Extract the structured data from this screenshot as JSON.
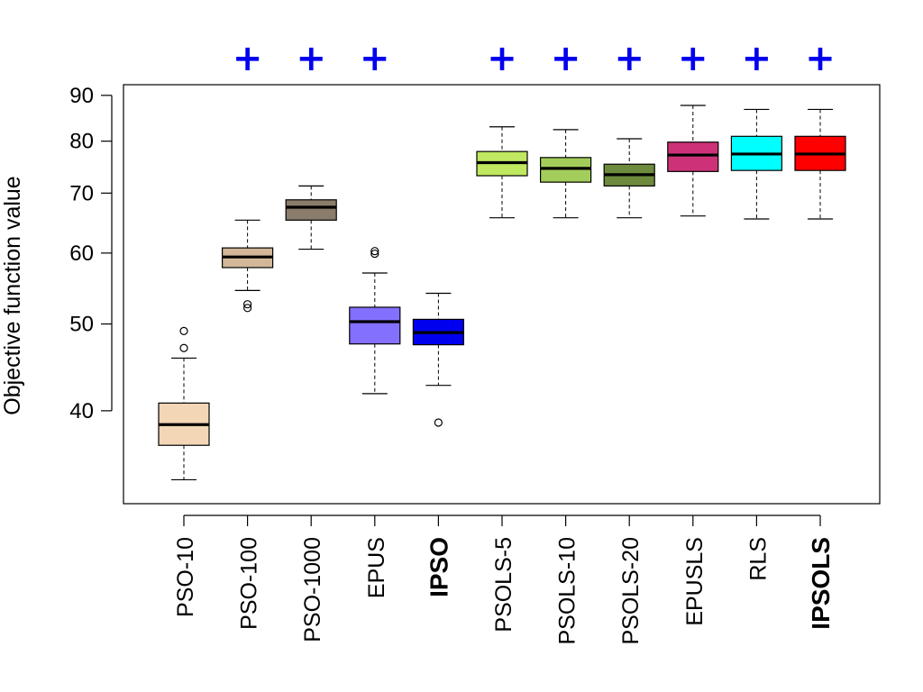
{
  "chart_data": {
    "type": "box",
    "title": "",
    "xlabel": "",
    "ylabel": "Objective function value",
    "y_scale": "log",
    "ylim": [
      31.5,
      92.5
    ],
    "yticks": [
      40,
      50,
      60,
      70,
      80,
      90
    ],
    "ytick_labels": [
      "40",
      "50",
      "60",
      "70",
      "80",
      "90"
    ],
    "significance_marker": "+",
    "significance_color": "#0000ee",
    "categories": [
      {
        "label": "PSO-10",
        "bold": false,
        "color": "#f2d6b6",
        "lower_whisker": 33.5,
        "q1": 36.6,
        "median": 38.6,
        "q3": 40.8,
        "upper_whisker": 45.8,
        "outliers": [
          47.0,
          49.1
        ],
        "significant": false
      },
      {
        "label": "PSO-100",
        "bold": false,
        "color": "#d2b898",
        "lower_whisker": 54.5,
        "q1": 57.8,
        "median": 59.4,
        "q3": 60.8,
        "upper_whisker": 65.3,
        "outliers": [
          52.1,
          52.6
        ],
        "significant": true
      },
      {
        "label": "PSO-1000",
        "bold": false,
        "color": "#8b7d6b",
        "lower_whisker": 60.6,
        "q1": 65.3,
        "median": 67.5,
        "q3": 68.8,
        "upper_whisker": 71.3,
        "outliers": [],
        "significant": true
      },
      {
        "label": "EPUS",
        "bold": false,
        "color": "#8470ff",
        "lower_whisker": 41.8,
        "q1": 47.5,
        "median": 50.3,
        "q3": 52.2,
        "upper_whisker": 57.0,
        "outliers": [
          59.9,
          60.3
        ],
        "significant": true
      },
      {
        "label": "IPSO",
        "bold": true,
        "color": "#0000ee",
        "lower_whisker": 42.7,
        "q1": 47.4,
        "median": 48.9,
        "q3": 50.6,
        "upper_whisker": 54.1,
        "outliers": [
          38.8
        ],
        "significant": false
      },
      {
        "label": "PSOLS-5",
        "bold": false,
        "color": "#c0e860",
        "lower_whisker": 65.7,
        "q1": 73.2,
        "median": 75.7,
        "q3": 77.9,
        "upper_whisker": 83.0,
        "outliers": [],
        "significant": true
      },
      {
        "label": "PSOLS-10",
        "bold": false,
        "color": "#a2cd5a",
        "lower_whisker": 65.7,
        "q1": 72.0,
        "median": 74.6,
        "q3": 76.7,
        "upper_whisker": 82.4,
        "outliers": [],
        "significant": true
      },
      {
        "label": "PSOLS-20",
        "bold": false,
        "color": "#6e8b3d",
        "lower_whisker": 65.7,
        "q1": 71.3,
        "median": 73.4,
        "q3": 75.4,
        "upper_whisker": 80.5,
        "outliers": [],
        "significant": true
      },
      {
        "label": "EPUSLS",
        "bold": false,
        "color": "#cd3278",
        "lower_whisker": 66.0,
        "q1": 74.0,
        "median": 77.2,
        "q3": 79.8,
        "upper_whisker": 87.7,
        "outliers": [],
        "significant": true
      },
      {
        "label": "RLS",
        "bold": false,
        "color": "#00ffff",
        "lower_whisker": 65.5,
        "q1": 74.2,
        "median": 77.4,
        "q3": 81.0,
        "upper_whisker": 86.8,
        "outliers": [],
        "significant": true
      },
      {
        "label": "IPSOLS",
        "bold": true,
        "color": "#ff0000",
        "lower_whisker": 65.5,
        "q1": 74.2,
        "median": 77.4,
        "q3": 81.0,
        "upper_whisker": 86.8,
        "outliers": [],
        "significant": true
      }
    ]
  }
}
